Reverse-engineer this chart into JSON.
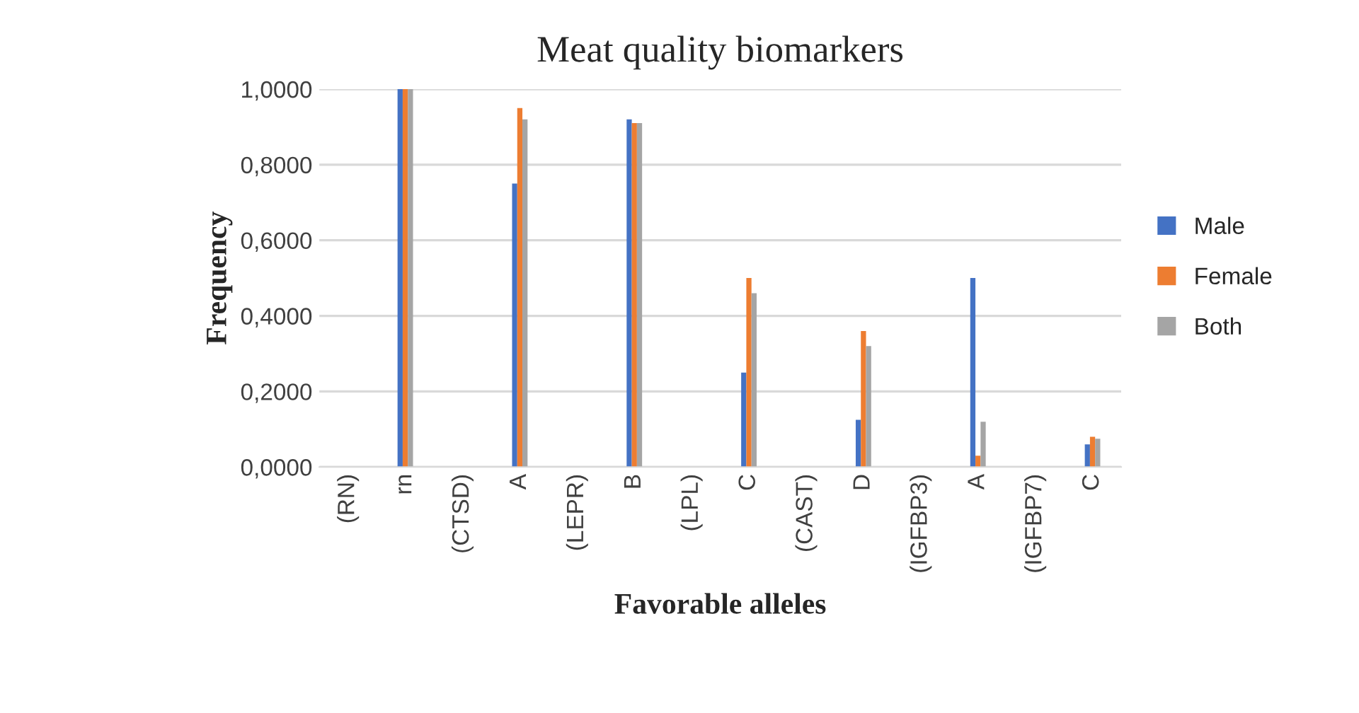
{
  "chart_data": {
    "type": "bar",
    "title": "Meat quality biomarkers",
    "xlabel": "Favorable alleles",
    "ylabel": "Frequency",
    "categories": [
      "(RN)",
      "rn",
      "(CTSD)",
      "A",
      "(LEPR)",
      "B",
      "(LPL)",
      "C",
      "(CAST)",
      "D",
      "(IGFBP3)",
      "A",
      "(IGFBP7)",
      "C"
    ],
    "series": [
      {
        "name": "Male",
        "color": "#4472c4",
        "values": [
          null,
          1.0,
          null,
          0.75,
          null,
          0.92,
          null,
          0.25,
          null,
          0.125,
          null,
          0.5,
          null,
          0.06
        ]
      },
      {
        "name": "Female",
        "color": "#ed7d31",
        "values": [
          null,
          1.0,
          null,
          0.95,
          null,
          0.91,
          null,
          0.5,
          null,
          0.36,
          null,
          0.03,
          null,
          0.08
        ]
      },
      {
        "name": "Both",
        "color": "#a5a5a5",
        "values": [
          null,
          1.0,
          null,
          0.92,
          null,
          0.91,
          null,
          0.46,
          null,
          0.32,
          null,
          0.12,
          null,
          0.075
        ]
      }
    ],
    "ylim": [
      0,
      1.0
    ],
    "yticks": [
      {
        "value": 0,
        "label": "0,0000"
      },
      {
        "value": 0.2,
        "label": "0,2000"
      },
      {
        "value": 0.4,
        "label": "0,4000"
      },
      {
        "value": 0.6,
        "label": "0,6000"
      },
      {
        "value": 0.8,
        "label": "0,8000"
      },
      {
        "value": 1.0,
        "label": "1,0000"
      }
    ],
    "grid": "y",
    "legend": "right"
  }
}
